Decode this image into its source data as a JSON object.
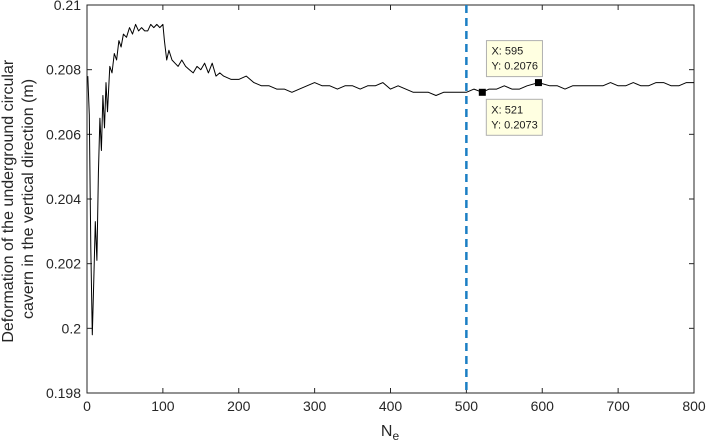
{
  "chart_data": {
    "type": "line",
    "xlabel_main": "N",
    "xlabel_sub": "e",
    "ylabel_lines": [
      "Deformation of the underground circular",
      "cavern in the vertical direction (m)"
    ],
    "xlim": [
      0,
      800
    ],
    "ylim": [
      0.198,
      0.21
    ],
    "x_ticks": [
      0,
      100,
      200,
      300,
      400,
      500,
      600,
      700,
      800
    ],
    "x_tick_labels": [
      "0",
      "100",
      "200",
      "300",
      "400",
      "500",
      "600",
      "700",
      "800"
    ],
    "y_ticks": [
      0.198,
      0.2,
      0.202,
      0.204,
      0.206,
      0.208,
      0.21
    ],
    "y_tick_labels": [
      "0.198",
      "0.2",
      "0.202",
      "0.204",
      "0.206",
      "0.208",
      "0.21"
    ],
    "grid": false,
    "series": [
      {
        "line_color": "#000000",
        "x": [
          1,
          3,
          5,
          7,
          9,
          11,
          13,
          15,
          17,
          19,
          21,
          23,
          25,
          27,
          30,
          33,
          36,
          39,
          42,
          45,
          48,
          52,
          56,
          60,
          64,
          68,
          72,
          76,
          80,
          84,
          88,
          92,
          96,
          100,
          102,
          105,
          108,
          112,
          116,
          120,
          125,
          130,
          135,
          140,
          145,
          150,
          155,
          160,
          165,
          170,
          175,
          180,
          190,
          200,
          210,
          220,
          230,
          240,
          250,
          260,
          270,
          280,
          290,
          300,
          310,
          320,
          330,
          340,
          350,
          360,
          370,
          380,
          390,
          400,
          410,
          420,
          430,
          440,
          450,
          460,
          470,
          480,
          490,
          500,
          510,
          521,
          530,
          540,
          550,
          560,
          570,
          580,
          595,
          610,
          620,
          630,
          640,
          650,
          660,
          670,
          680,
          690,
          700,
          710,
          720,
          730,
          740,
          750,
          760,
          770,
          780,
          790,
          800
        ],
        "y": [
          0.2078,
          0.2066,
          0.2025,
          0.1998,
          0.2015,
          0.2033,
          0.2021,
          0.2048,
          0.2065,
          0.2055,
          0.2072,
          0.2062,
          0.2076,
          0.2067,
          0.2081,
          0.2079,
          0.2085,
          0.2083,
          0.2089,
          0.2087,
          0.2091,
          0.209,
          0.2093,
          0.2091,
          0.2094,
          0.2092,
          0.2093,
          0.2092,
          0.2092,
          0.2094,
          0.2093,
          0.2094,
          0.2093,
          0.2094,
          0.2089,
          0.2083,
          0.2086,
          0.2083,
          0.2082,
          0.2081,
          0.2083,
          0.2081,
          0.208,
          0.2079,
          0.2081,
          0.208,
          0.2082,
          0.2079,
          0.2082,
          0.2078,
          0.2079,
          0.2078,
          0.2077,
          0.2077,
          0.2078,
          0.2076,
          0.2075,
          0.2075,
          0.2074,
          0.2074,
          0.2073,
          0.2074,
          0.2075,
          0.2076,
          0.2075,
          0.2075,
          0.2074,
          0.2075,
          0.2075,
          0.2074,
          0.2075,
          0.2075,
          0.2076,
          0.2074,
          0.2075,
          0.2074,
          0.2073,
          0.2073,
          0.2073,
          0.2072,
          0.2073,
          0.2073,
          0.2073,
          0.2073,
          0.2074,
          0.2073,
          0.2074,
          0.2074,
          0.2075,
          0.2074,
          0.2074,
          0.2075,
          0.2076,
          0.2075,
          0.2075,
          0.2074,
          0.2075,
          0.2075,
          0.2075,
          0.2075,
          0.2075,
          0.2076,
          0.2075,
          0.2075,
          0.2076,
          0.2075,
          0.2075,
          0.2076,
          0.2076,
          0.2075,
          0.2075,
          0.2076,
          0.2076
        ]
      }
    ],
    "reference_line": {
      "x": 500,
      "color": "#1b7fc4",
      "style": "dashed"
    },
    "datatips": [
      {
        "x": 521,
        "y": 0.2073,
        "x_text": "X: 521",
        "y_text": "Y: 0.2073",
        "placement": "below-right"
      },
      {
        "x": 595,
        "y": 0.2076,
        "x_text": "X: 595",
        "y_text": "Y: 0.2076",
        "placement": "above-left"
      }
    ],
    "colors": {
      "line": "#000000",
      "axes": "#262626",
      "tip_bg": "#ffffe1",
      "tip_border": "#b0b0b0"
    }
  }
}
